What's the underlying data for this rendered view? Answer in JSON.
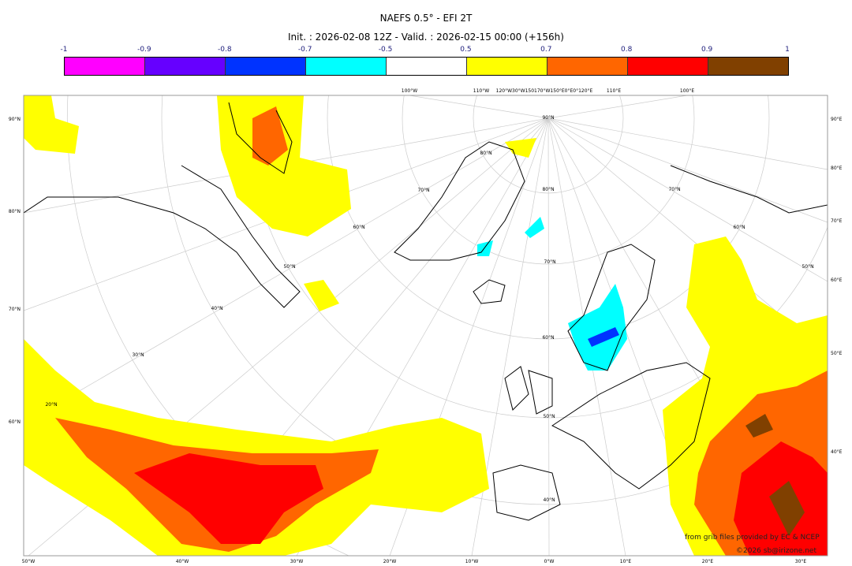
{
  "title": "NAEFS 0.5° - EFI 2T",
  "subtitle": "Init. : 2026-02-08 12Z - Valid. : 2026-02-15 00:00 (+156h)",
  "colorbar": {
    "ticks": [
      "-1",
      "-0.9",
      "-0.8",
      "-0.7",
      "-0.5",
      "0.5",
      "0.7",
      "0.8",
      "0.9",
      "1"
    ],
    "colors": [
      "#ff00ff",
      "#6600ff",
      "#0033ff",
      "#00ffff",
      "#ffffff",
      "#ffff00",
      "#ff6600",
      "#ff0000",
      "#804000"
    ]
  },
  "map": {
    "left_labels": [
      "90°N",
      "80°N",
      "70°N",
      "60°N"
    ],
    "right_labels": [
      "90°E",
      "80°E",
      "70°E",
      "60°E",
      "50°E",
      "40°E"
    ],
    "bottom_labels": [
      "50°W",
      "40°W",
      "30°W",
      "20°W",
      "10°W",
      "0°W",
      "10°E",
      "20°E",
      "30°E"
    ],
    "top_labels": [
      "100°W",
      "110°W",
      "120°W30°W150170°W150°E0°E0°120°E",
      "110°E",
      "100°E"
    ],
    "inner_labels": [
      "90°N",
      "80°N",
      "70°N",
      "60°N",
      "50°N",
      "40°N",
      "20°N",
      "30°N",
      "40°N",
      "50°N",
      "60°N",
      "70°N",
      "80°N",
      "50°N",
      "60°N",
      "70°N"
    ]
  },
  "credits": [
    "from grib files provided by EC & NCEP",
    "©2026 sb@irizone.net"
  ]
}
